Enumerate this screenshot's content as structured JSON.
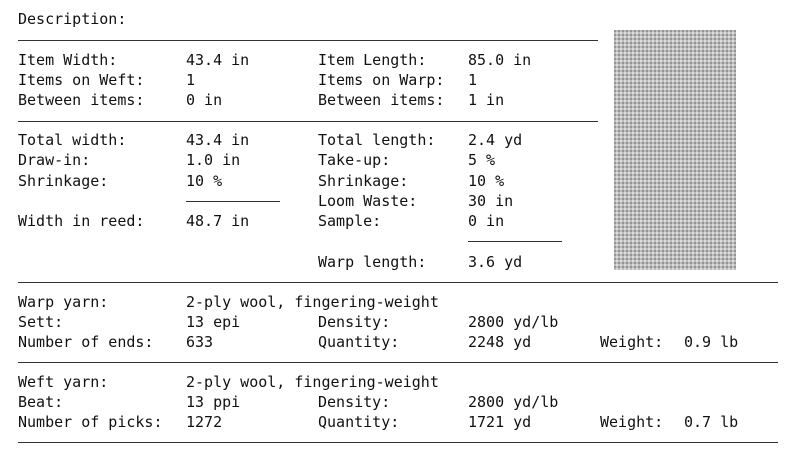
{
  "header": {
    "description_label": "Description:"
  },
  "dimensions": {
    "item_width_label": "Item Width:",
    "item_width_value": "43.4 in",
    "items_on_weft_label": "Items on Weft:",
    "items_on_weft_value": "1",
    "between_items_weft_label": "Between items:",
    "between_items_weft_value": "0 in",
    "item_length_label": "Item Length:",
    "item_length_value": "85.0 in",
    "items_on_warp_label": "Items on Warp:",
    "items_on_warp_value": "1",
    "between_items_warp_label": "Between items:",
    "between_items_warp_value": "1 in"
  },
  "totals": {
    "total_width_label": "Total width:",
    "total_width_value": "43.4 in",
    "draw_in_label": "Draw-in:",
    "draw_in_value": "1.0 in",
    "shrinkage_w_label": "Shrinkage:",
    "shrinkage_w_value": "10 %",
    "width_in_reed_label": "Width in reed:",
    "width_in_reed_value": "48.7 in",
    "total_length_label": "Total length:",
    "total_length_value": "2.4 yd",
    "take_up_label": "Take-up:",
    "take_up_value": "5 %",
    "shrinkage_l_label": "Shrinkage:",
    "shrinkage_l_value": "10 %",
    "loom_waste_label": "Loom Waste:",
    "loom_waste_value": "30 in",
    "sample_label": "Sample:",
    "sample_value": "0 in",
    "warp_length_label": "Warp length:",
    "warp_length_value": "3.6 yd"
  },
  "warp": {
    "yarn_label": "Warp yarn:",
    "yarn_value": "2-ply wool, fingering-weight",
    "sett_label": "Sett:",
    "sett_value": "13 epi",
    "density_label": "Density:",
    "density_value": "2800 yd/lb",
    "ends_label": "Number of ends:",
    "ends_value": "633",
    "quantity_label": "Quantity:",
    "quantity_value": "2248 yd",
    "weight_label": "Weight:",
    "weight_value": "0.9 lb"
  },
  "weft": {
    "yarn_label": "Weft yarn:",
    "yarn_value": "2-ply wool, fingering-weight",
    "beat_label": "Beat:",
    "beat_value": "13 ppi",
    "density_label": "Density:",
    "density_value": "2800 yd/lb",
    "picks_label": "Number of picks:",
    "picks_value": "1272",
    "quantity_label": "Quantity:",
    "quantity_value": "1721 yd",
    "weight_label": "Weight:",
    "weight_value": "0.7 lb"
  },
  "colors": {
    "swatch": "#bdbdbd",
    "rule": "#333333",
    "text": "#111111"
  }
}
